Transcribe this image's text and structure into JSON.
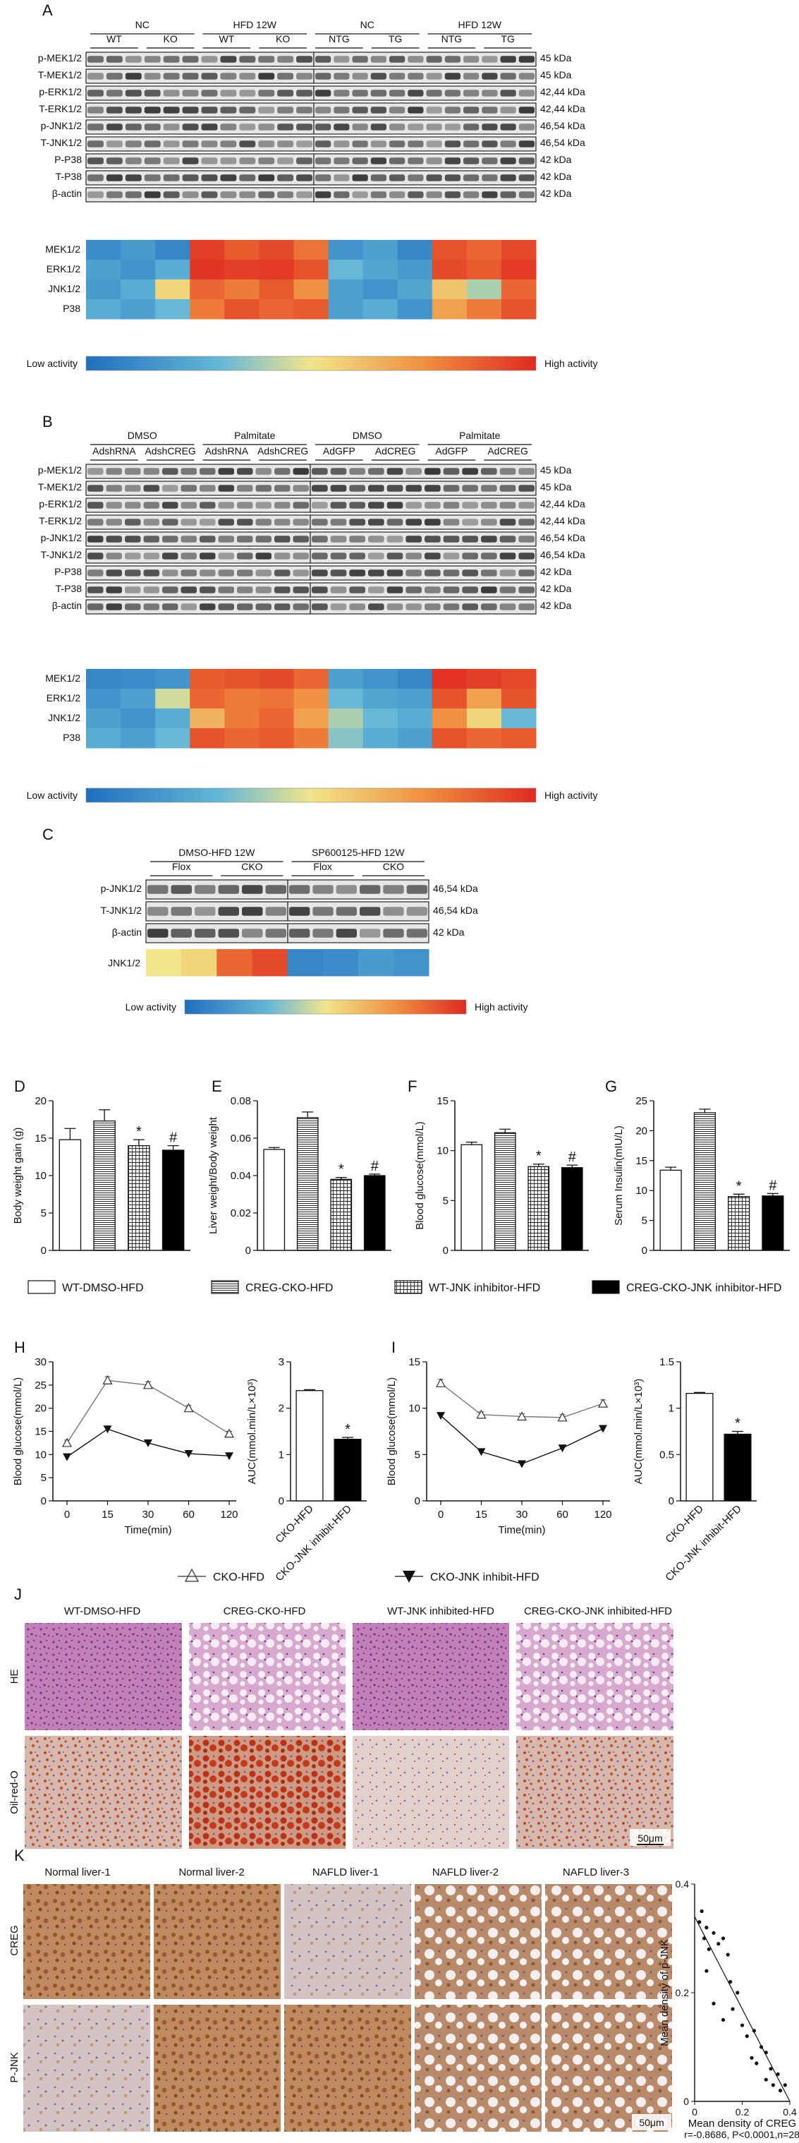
{
  "panel_letters": [
    "A",
    "B",
    "C",
    "D",
    "E",
    "F",
    "G",
    "H",
    "I",
    "J",
    "K"
  ],
  "panelA": {
    "groups_top": [
      "NC",
      "HFD  12W",
      "NC",
      "HFD 12W"
    ],
    "groups_sub": [
      "WT",
      "KO",
      "WT",
      "KO",
      "NTG",
      "TG",
      "NTG",
      "TG"
    ],
    "rows": [
      {
        "label": "p-MEK1/2",
        "kda": "45 kDa"
      },
      {
        "label": "T-MEK1/2",
        "kda": "45 kDa"
      },
      {
        "label": "p-ERK1/2",
        "kda": "42,44 kDa"
      },
      {
        "label": "T-ERK1/2",
        "kda": "42,44 kDa"
      },
      {
        "label": "p-JNK1/2",
        "kda": "46,54 kDa"
      },
      {
        "label": "T-JNK1/2",
        "kda": "46,54 kDa"
      },
      {
        "label": "P-P38",
        "kda": "42 kDa"
      },
      {
        "label": "T-P38",
        "kda": "42 kDa"
      },
      {
        "label": "β-actin",
        "kda": "42 kDa"
      }
    ],
    "heat_rows": [
      "MEK1/2",
      "ERK1/2",
      "JNK1/2",
      "P38"
    ],
    "heat_values": [
      [
        0.12,
        0.18,
        0.1,
        0.95,
        0.88,
        0.92,
        0.82,
        0.15,
        0.2,
        0.1,
        0.9,
        0.85,
        0.93
      ],
      [
        0.2,
        0.15,
        0.25,
        0.97,
        0.95,
        0.96,
        0.9,
        0.3,
        0.22,
        0.18,
        0.92,
        0.88,
        0.96
      ],
      [
        0.18,
        0.25,
        0.55,
        0.85,
        0.8,
        0.88,
        0.75,
        0.2,
        0.15,
        0.22,
        0.6,
        0.4,
        0.85
      ],
      [
        0.25,
        0.2,
        0.3,
        0.8,
        0.9,
        0.85,
        0.88,
        0.2,
        0.25,
        0.15,
        0.7,
        0.8,
        0.9
      ]
    ],
    "legend_low": "Low activity",
    "legend_high": "High activity"
  },
  "panelB": {
    "groups_top": [
      "DMSO",
      "Palmitate",
      "DMSO",
      "Palmitate"
    ],
    "groups_sub": [
      "AdshRNA",
      "AdshCREG",
      "AdshRNA",
      "AdshCREG",
      "AdGFP",
      "AdCREG",
      "AdGFP",
      "AdCREG"
    ],
    "rows": [
      {
        "label": "p-MEK1/2",
        "kda": "45 kDa"
      },
      {
        "label": "T-MEK1/2",
        "kda": "45 kDa"
      },
      {
        "label": "p-ERK1/2",
        "kda": "42,44 kDa"
      },
      {
        "label": "T-ERK1/2",
        "kda": "42,44 kDa"
      },
      {
        "label": "p-JNK1/2",
        "kda": "46,54 kDa"
      },
      {
        "label": "T-JNK1/2",
        "kda": "46,54 kDa"
      },
      {
        "label": "P-P38",
        "kda": "42 kDa"
      },
      {
        "label": "T-P38",
        "kda": "42 kDa"
      },
      {
        "label": "β-actin",
        "kda": "42 kDa"
      }
    ],
    "heat_rows": [
      "MEK1/2",
      "ERK1/2",
      "JNK1/2",
      "P38"
    ],
    "heat_values": [
      [
        0.1,
        0.12,
        0.15,
        0.88,
        0.9,
        0.92,
        0.85,
        0.2,
        0.15,
        0.1,
        0.98,
        0.95,
        0.93
      ],
      [
        0.15,
        0.2,
        0.45,
        0.85,
        0.8,
        0.82,
        0.75,
        0.3,
        0.22,
        0.2,
        0.9,
        0.7,
        0.9
      ],
      [
        0.2,
        0.15,
        0.25,
        0.65,
        0.8,
        0.85,
        0.7,
        0.4,
        0.3,
        0.25,
        0.75,
        0.55,
        0.3
      ],
      [
        0.25,
        0.2,
        0.3,
        0.9,
        0.85,
        0.88,
        0.8,
        0.35,
        0.25,
        0.2,
        0.9,
        0.85,
        0.88
      ]
    ],
    "legend_low": "Low activity",
    "legend_high": "High activity"
  },
  "panelC": {
    "groups_top": [
      "DMSO-HFD 12W",
      "SP600125-HFD 12W"
    ],
    "groups_sub": [
      "Flox",
      "CKO",
      "Flox",
      "CKO"
    ],
    "rows": [
      {
        "label": "p-JNK1/2",
        "kda": "46,54 kDa"
      },
      {
        "label": "T-JNK1/2",
        "kda": "46,54 kDa"
      },
      {
        "label": "β-actin",
        "kda": "42 kDa"
      }
    ],
    "heat_rows": [
      "JNK1/2"
    ],
    "heat_values": [
      [
        0.5,
        0.55,
        0.85,
        0.92,
        0.1,
        0.12,
        0.18,
        0.15
      ]
    ],
    "legend_low": "Low activity",
    "legend_high": "High activity"
  },
  "legend_DG": [
    "WT-DMSO-HFD",
    "CREG-CKO-HFD",
    "WT-JNK inhibitor-HFD",
    "CREG-CKO-JNK inhibitor-HFD"
  ],
  "legend_HI": [
    "CKO-HFD",
    "CKO-JNK inhibit-HFD"
  ],
  "panelJ": {
    "columns": [
      "WT-DMSO-HFD",
      "CREG-CKO-HFD",
      "WT-JNK inhibited-HFD",
      "CREG-CKO-JNK inhibited-HFD"
    ],
    "rows": [
      "HE",
      "Oil-red-O"
    ],
    "scale": "50μm"
  },
  "panelK": {
    "columns": [
      "Normal liver-1",
      "Normal liver-2",
      "NAFLD liver-1",
      "NAFLD liver-2",
      "NAFLD liver-3"
    ],
    "rows": [
      "CREG",
      "P-JNK"
    ],
    "scale": "50μm"
  },
  "chart_data": [
    {
      "id": "D",
      "type": "bar",
      "categories": [
        "WT-DMSO-HFD",
        "CREG-CKO-HFD",
        "WT-JNK inhibitor-HFD",
        "CREG-CKO-JNK inhibitor-HFD"
      ],
      "values": [
        14.8,
        17.3,
        14.0,
        13.4
      ],
      "errors": [
        1.5,
        1.5,
        0.8,
        0.6
      ],
      "marks": [
        "",
        "",
        "*",
        "#"
      ],
      "ylabel": "Body weight gain (g)",
      "ylim": [
        0,
        20
      ],
      "yticks": [
        0,
        5,
        10,
        15,
        20
      ]
    },
    {
      "id": "E",
      "type": "bar",
      "categories": [
        "WT-DMSO-HFD",
        "CREG-CKO-HFD",
        "WT-JNK inhibitor-HFD",
        "CREG-CKO-JNK inhibitor-HFD"
      ],
      "values": [
        0.054,
        0.071,
        0.038,
        0.04
      ],
      "errors": [
        0.001,
        0.003,
        0.001,
        0.0008
      ],
      "marks": [
        "",
        "",
        "*",
        "#"
      ],
      "ylabel": "Liver weight/Body weight",
      "ylim": [
        0,
        0.08
      ],
      "yticks": [
        0,
        0.02,
        0.04,
        0.06,
        0.08
      ]
    },
    {
      "id": "F",
      "type": "bar",
      "categories": [
        "WT-DMSO-HFD",
        "CREG-CKO-HFD",
        "WT-JNK inhibitor-HFD",
        "CREG-CKO-JNK inhibitor-HFD"
      ],
      "values": [
        10.6,
        11.8,
        8.4,
        8.3
      ],
      "errors": [
        0.25,
        0.35,
        0.25,
        0.25
      ],
      "marks": [
        "",
        "",
        "*",
        "#"
      ],
      "ylabel": "Blood glucose(mmol/L)",
      "ylim": [
        0,
        15
      ],
      "yticks": [
        0,
        5,
        10,
        15
      ]
    },
    {
      "id": "G",
      "type": "bar",
      "categories": [
        "WT-DMSO-HFD",
        "CREG-CKO-HFD",
        "WT-JNK inhibitor-HFD",
        "CREG-CKO-JNK inhibitor-HFD"
      ],
      "values": [
        13.4,
        23.0,
        9.0,
        9.1
      ],
      "errors": [
        0.5,
        0.6,
        0.4,
        0.4
      ],
      "marks": [
        "",
        "",
        "*",
        "#"
      ],
      "ylabel": "Serum Insulin(mIU/L)",
      "ylim": [
        0,
        25
      ],
      "yticks": [
        0,
        5,
        10,
        15,
        20,
        25
      ]
    },
    {
      "id": "H-line",
      "type": "line",
      "x": [
        0,
        15,
        30,
        60,
        120
      ],
      "series": [
        {
          "name": "CKO-HFD",
          "values": [
            12.5,
            26.0,
            25.0,
            20.0,
            14.5
          ],
          "errors": [
            0.6,
            0.8,
            0.7,
            0.6,
            0.5
          ]
        },
        {
          "name": "CKO-JNK inhibit-HFD",
          "values": [
            9.5,
            15.5,
            12.5,
            10.2,
            9.7
          ],
          "errors": [
            0.3,
            0.4,
            0.3,
            0.3,
            0.3
          ]
        }
      ],
      "xlabel": "Time(min)",
      "ylabel": "Blood glucose(mmol/L)",
      "ylim": [
        0,
        30
      ],
      "yticks": [
        0,
        5,
        10,
        15,
        20,
        25,
        30
      ]
    },
    {
      "id": "H-auc",
      "type": "bar",
      "categories": [
        "CKO-HFD",
        "CKO-JNK inhibit-HFD"
      ],
      "values": [
        2.38,
        1.33
      ],
      "errors": [
        0.02,
        0.04
      ],
      "marks": [
        "",
        "*"
      ],
      "ylabel": "AUC(mmol.min/L×10³)",
      "ylim": [
        0,
        3
      ],
      "yticks": [
        0,
        1,
        2,
        3
      ]
    },
    {
      "id": "I-line",
      "type": "line",
      "x": [
        0,
        15,
        30,
        60,
        120
      ],
      "series": [
        {
          "name": "CKO-HFD",
          "values": [
            12.7,
            9.3,
            9.1,
            9.0,
            10.5
          ],
          "errors": [
            0.4,
            0.3,
            0.3,
            0.3,
            0.4
          ]
        },
        {
          "name": "CKO-JNK inhibit-HFD",
          "values": [
            9.2,
            5.3,
            4.0,
            5.7,
            7.8
          ],
          "errors": [
            0.2,
            0.2,
            0.2,
            0.2,
            0.2
          ]
        }
      ],
      "xlabel": "Time(min)",
      "ylabel": "Blood glucose(mmol/L)",
      "ylim": [
        0,
        15
      ],
      "yticks": [
        0,
        5,
        10,
        15
      ]
    },
    {
      "id": "I-auc",
      "type": "bar",
      "categories": [
        "CKO-HFD",
        "CKO-JNK inhibit-HFD"
      ],
      "values": [
        1.16,
        0.72
      ],
      "errors": [
        0.01,
        0.03
      ],
      "marks": [
        "",
        "*"
      ],
      "ylabel": "AUC(mmol.min/L×10³)",
      "ylim": [
        0,
        1.5
      ],
      "yticks": [
        0,
        0.5,
        1.0,
        1.5
      ]
    },
    {
      "id": "K-scatter",
      "type": "scatter",
      "points": [
        [
          0.02,
          0.33
        ],
        [
          0.04,
          0.3
        ],
        [
          0.05,
          0.32
        ],
        [
          0.06,
          0.28
        ],
        [
          0.08,
          0.31
        ],
        [
          0.1,
          0.29
        ],
        [
          0.12,
          0.3
        ],
        [
          0.14,
          0.27
        ],
        [
          0.15,
          0.22
        ],
        [
          0.05,
          0.24
        ],
        [
          0.08,
          0.18
        ],
        [
          0.12,
          0.15
        ],
        [
          0.18,
          0.2
        ],
        [
          0.2,
          0.14
        ],
        [
          0.22,
          0.12
        ],
        [
          0.25,
          0.13
        ],
        [
          0.28,
          0.1
        ],
        [
          0.3,
          0.09
        ],
        [
          0.26,
          0.07
        ],
        [
          0.32,
          0.06
        ],
        [
          0.35,
          0.05
        ],
        [
          0.33,
          0.03
        ],
        [
          0.36,
          0.02
        ],
        [
          0.3,
          0.04
        ],
        [
          0.38,
          0.03
        ],
        [
          0.03,
          0.35
        ],
        [
          0.16,
          0.17
        ],
        [
          0.24,
          0.08
        ]
      ],
      "fit": [
        [
          0,
          0.34
        ],
        [
          0.4,
          0.0
        ]
      ],
      "xlabel": "Mean density of CREG",
      "ylabel": "Mean density of p-JNK",
      "xlim": [
        0,
        0.4
      ],
      "ylim": [
        0,
        0.4
      ],
      "xticks": [
        0,
        0.2,
        0.4
      ],
      "yticks": [
        0,
        0.2,
        0.4
      ],
      "annotation": "r=-0.8686, P<0.0001,n=28"
    }
  ]
}
